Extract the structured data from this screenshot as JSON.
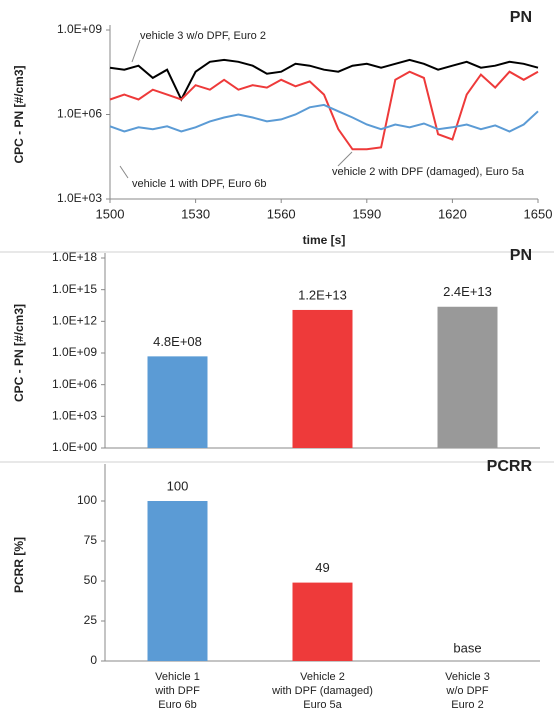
{
  "chart_data": [
    {
      "type": "line",
      "title": "PN",
      "x_label": "time [s]",
      "y_label": "CPC - PN [#/cm3]",
      "log_y": true,
      "x": [
        1500,
        1505,
        1510,
        1515,
        1520,
        1525,
        1530,
        1535,
        1540,
        1545,
        1550,
        1555,
        1560,
        1565,
        1570,
        1575,
        1580,
        1585,
        1590,
        1595,
        1600,
        1605,
        1610,
        1615,
        1620,
        1625,
        1630,
        1635,
        1640,
        1645,
        1650
      ],
      "xlim": [
        1500,
        1650
      ],
      "xticks": [
        1500,
        1530,
        1560,
        1590,
        1620,
        1650
      ],
      "ylim": [
        1000,
        1000000000
      ],
      "yticks": [
        {
          "value": 1000,
          "label": "1.0E+03"
        },
        {
          "value": 1000000,
          "label": "1.0E+06"
        },
        {
          "value": 1000000000,
          "label": "1.0E+09"
        }
      ],
      "series": [
        {
          "name": "vehicle 3 w/o DPF, Euro 2",
          "color": "#000000",
          "values": [
            46000000,
            39000000,
            54000000,
            20000000,
            39000000,
            3400000,
            33000000,
            74000000,
            87000000,
            74000000,
            54000000,
            28000000,
            33000000,
            63000000,
            54000000,
            39000000,
            33000000,
            54000000,
            63000000,
            46000000,
            63000000,
            87000000,
            63000000,
            39000000,
            54000000,
            74000000,
            46000000,
            54000000,
            74000000,
            63000000,
            46000000
          ]
        },
        {
          "name": "vehicle 1 with DPF, Euro 6b",
          "color": "#5b9bd5",
          "values": [
            380000,
            250000,
            350000,
            300000,
            380000,
            250000,
            350000,
            570000,
            780000,
            1000000,
            780000,
            570000,
            670000,
            1000000,
            1800000,
            2200000,
            1300000,
            780000,
            440000,
            300000,
            440000,
            350000,
            480000,
            300000,
            350000,
            440000,
            300000,
            410000,
            250000,
            440000,
            1300000
          ]
        },
        {
          "name": "vehicle 2 with DPF (damaged), Euro 5a",
          "color": "#ee3a3a",
          "values": [
            3400000,
            5100000,
            3400000,
            7600000,
            5100000,
            3400000,
            11000000,
            7600000,
            17000000,
            7600000,
            11000000,
            9000000,
            17000000,
            10000000,
            15000000,
            5100000,
            300000,
            58000,
            58000,
            68000,
            17000000,
            33000000,
            20000000,
            200000,
            130000,
            5100000,
            26000000,
            9000000,
            33000000,
            17000000,
            33000000
          ]
        }
      ]
    },
    {
      "type": "bar",
      "title": "PN",
      "y_label": "CPC - PN [#/cm3]",
      "log_y": true,
      "values": [
        480000000,
        12000000000000,
        24000000000000
      ],
      "value_labels": [
        "4.8E+08",
        "1.2E+13",
        "2.4E+13"
      ],
      "colors": [
        "#5b9bd5",
        "#ee3a3a",
        "#999999"
      ],
      "ylim": [
        1,
        1000000000000000000
      ],
      "yticks": [
        {
          "value": 1,
          "label": "1.0E+00"
        },
        {
          "value": 1000,
          "label": "1.0E+03"
        },
        {
          "value": 1000000,
          "label": "1.0E+06"
        },
        {
          "value": 1000000000,
          "label": "1.0E+09"
        },
        {
          "value": 1000000000000,
          "label": "1.0E+12"
        },
        {
          "value": 1000000000000000,
          "label": "1.0E+15"
        },
        {
          "value": 1000000000000000000,
          "label": "1.0E+18"
        }
      ]
    },
    {
      "type": "bar",
      "title": "PCRR",
      "y_label": "PCRR [%]",
      "log_y": false,
      "categories": [
        [
          "Vehicle 1",
          "with DPF",
          "Euro 6b"
        ],
        [
          "Vehicle 2",
          "with DPF (damaged)",
          "Euro 5a"
        ],
        [
          "Vehicle 3",
          "w/o DPF",
          "Euro 2"
        ]
      ],
      "values": [
        100,
        49,
        null
      ],
      "value_labels": [
        "100",
        "49",
        "base"
      ],
      "colors": [
        "#5b9bd5",
        "#ee3a3a",
        "#999999"
      ],
      "ylim": [
        0,
        120
      ],
      "yticks": [
        0,
        25,
        50,
        75,
        100
      ]
    }
  ]
}
